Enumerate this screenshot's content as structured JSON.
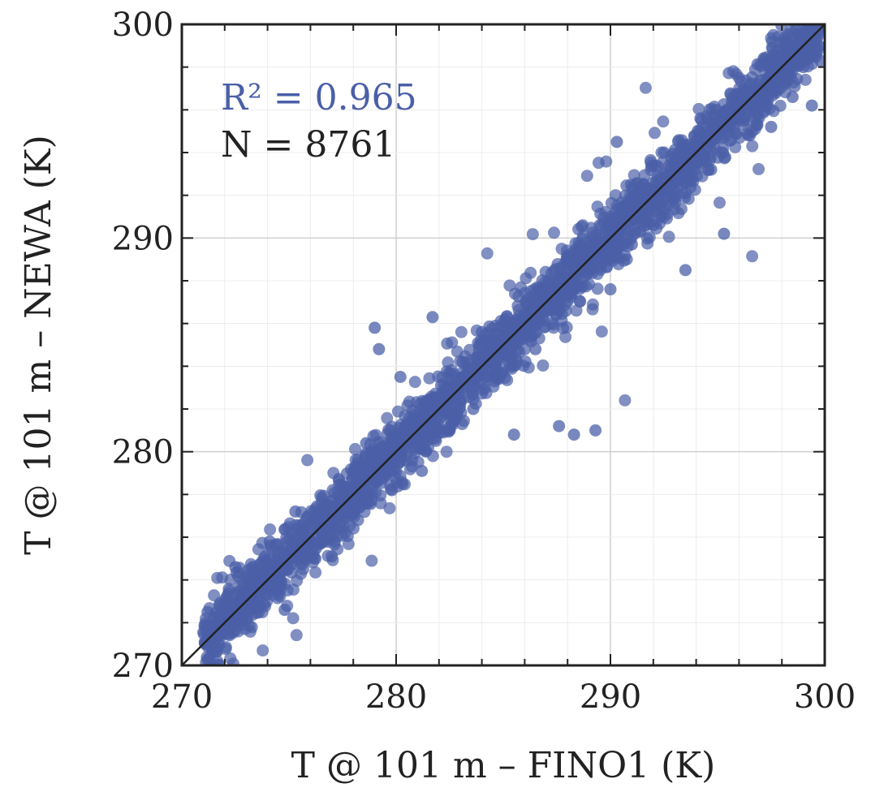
{
  "chart_data": {
    "type": "scatter",
    "title": "",
    "xlabel": "T @ 101 m – FINO1 (K)",
    "ylabel": "T @ 101 m – NEWA (K)",
    "xlim": [
      270,
      300
    ],
    "ylim": [
      270,
      300
    ],
    "xticks": [
      "270",
      "280",
      "290",
      "300"
    ],
    "yticks": [
      "270",
      "280",
      "290",
      "300"
    ],
    "grid": true,
    "legend": "none",
    "annotations": {
      "r2_label": "R² = 0.965",
      "n_label": "N = 8761"
    },
    "reference_line": {
      "type": "identity",
      "from": [
        270,
        270
      ],
      "to": [
        300,
        300
      ]
    },
    "series": [
      {
        "values_count": 8761,
        "sample_points": [
          [
            271.2,
            272.5
          ],
          [
            272.0,
            271.8
          ],
          [
            272.5,
            274.6
          ],
          [
            273.2,
            273.5
          ],
          [
            274.1,
            275.8
          ],
          [
            274.8,
            272.6
          ],
          [
            275.3,
            277.2
          ],
          [
            275.7,
            275.9
          ],
          [
            276.2,
            276.8
          ],
          [
            277.0,
            275.1
          ],
          [
            277.5,
            278.4
          ],
          [
            278.0,
            277.1
          ],
          [
            278.6,
            280.4
          ],
          [
            279.0,
            285.8
          ],
          [
            279.2,
            284.8
          ],
          [
            279.8,
            278.2
          ],
          [
            280.2,
            283.5
          ],
          [
            280.7,
            281.3
          ],
          [
            281.2,
            279.1
          ],
          [
            281.7,
            286.3
          ],
          [
            282.1,
            283.1
          ],
          [
            282.5,
            281.0
          ],
          [
            283.1,
            284.2
          ],
          [
            283.6,
            282.0
          ],
          [
            284.0,
            285.6
          ],
          [
            284.6,
            283.3
          ],
          [
            285.1,
            286.2
          ],
          [
            285.5,
            280.8
          ],
          [
            286.0,
            285.5
          ],
          [
            286.5,
            284.8
          ],
          [
            287.0,
            287.6
          ],
          [
            287.6,
            281.2
          ],
          [
            288.0,
            289.1
          ],
          [
            288.3,
            280.8
          ],
          [
            288.7,
            288.4
          ],
          [
            289.3,
            281.0
          ],
          [
            289.5,
            290.6
          ],
          [
            290.0,
            287.6
          ],
          [
            290.3,
            294.5
          ],
          [
            290.7,
            291.3
          ],
          [
            291.0,
            289.7
          ],
          [
            291.5,
            292.5
          ],
          [
            292.0,
            290.6
          ],
          [
            292.5,
            294.0
          ],
          [
            292.9,
            291.8
          ],
          [
            293.5,
            288.5
          ],
          [
            293.8,
            292.9
          ],
          [
            294.2,
            295.6
          ],
          [
            294.7,
            293.2
          ],
          [
            295.3,
            290.2
          ],
          [
            295.6,
            295.5
          ],
          [
            296.0,
            297.5
          ],
          [
            296.5,
            294.8
          ],
          [
            297.0,
            296.9
          ],
          [
            297.5,
            295.2
          ],
          [
            298.0,
            297.8
          ],
          [
            298.5,
            296.6
          ],
          [
            299.0,
            298.0
          ],
          [
            299.4,
            296.2
          ],
          [
            299.8,
            298.3
          ]
        ]
      }
    ],
    "colors": {
      "points": "#4b5fa8",
      "identity_line": "#222222",
      "frame": "#222222",
      "grid_major": "#cfcfcf",
      "grid_minor": "#ececec",
      "r2_text": "#4b5fa8",
      "n_text": "#222222"
    }
  }
}
